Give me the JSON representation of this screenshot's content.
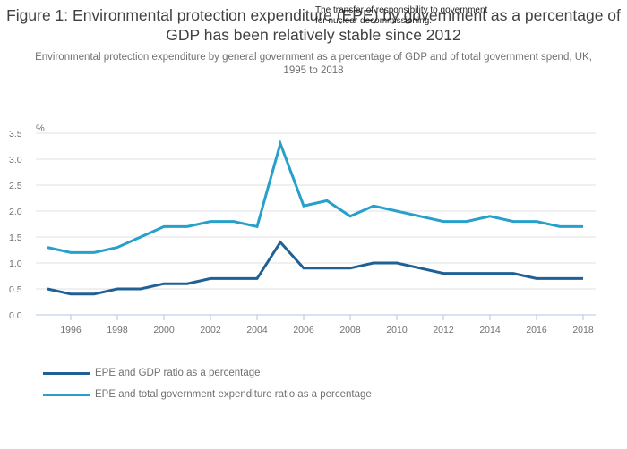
{
  "chart_data": {
    "type": "line",
    "title": "Figure 1: Environmental protection expenditure (EPE) by government as a percentage of GDP has been relatively stable since 2012",
    "subtitle": "Environmental protection expenditure by general government as a percentage of GDP and of total government spend, UK, 1995 to 2018",
    "annotation": "The transfer of responsibility to government\nfor nuclear decommissioning.",
    "ylabel": "%",
    "xlabel": "",
    "ylim": [
      0,
      3.5
    ],
    "yticks": [
      "0.0",
      "0.5",
      "1.0",
      "1.5",
      "2.0",
      "2.5",
      "3.0",
      "3.5"
    ],
    "xticks": [
      "1996",
      "1998",
      "2000",
      "2002",
      "2004",
      "2006",
      "2008",
      "2010",
      "2012",
      "2014",
      "2016",
      "2018"
    ],
    "x": [
      1995,
      1996,
      1997,
      1998,
      1999,
      2000,
      2001,
      2002,
      2003,
      2004,
      2005,
      2006,
      2007,
      2008,
      2009,
      2010,
      2011,
      2012,
      2013,
      2014,
      2015,
      2016,
      2017,
      2018
    ],
    "grid": true,
    "legend_position": "bottom-left",
    "series": [
      {
        "name": "EPE and GDP ratio as a percentage",
        "color": "#206095",
        "values": [
          0.5,
          0.4,
          0.4,
          0.5,
          0.5,
          0.6,
          0.6,
          0.7,
          0.7,
          0.7,
          1.4,
          0.9,
          0.9,
          0.9,
          1.0,
          1.0,
          0.9,
          0.8,
          0.8,
          0.8,
          0.8,
          0.7,
          0.7,
          0.7
        ]
      },
      {
        "name": "EPE and total government expenditure ratio as a percentage",
        "color": "#27A0CC",
        "values": [
          1.3,
          1.2,
          1.2,
          1.3,
          1.5,
          1.7,
          1.7,
          1.8,
          1.8,
          1.7,
          3.3,
          2.1,
          2.2,
          1.9,
          2.1,
          2.0,
          1.9,
          1.8,
          1.8,
          1.9,
          1.8,
          1.8,
          1.7,
          1.7
        ]
      }
    ]
  }
}
